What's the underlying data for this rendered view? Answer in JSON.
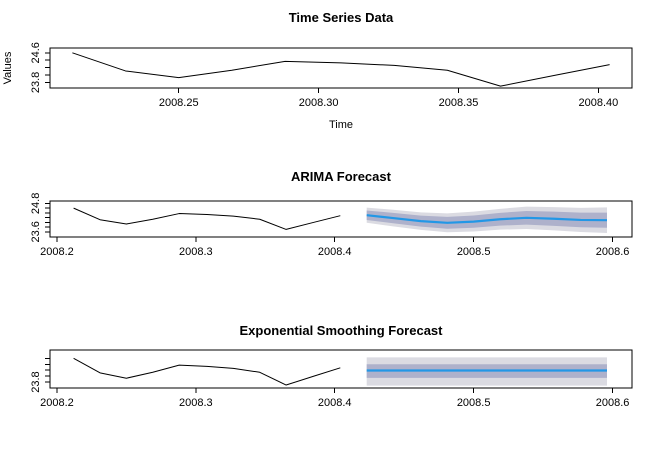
{
  "figure": {
    "background": "#ffffff",
    "frame_color": "#000000",
    "observed_line_color": "#000000",
    "forecast_line_color": "#2297E6",
    "band80_color": "#AEB1CB",
    "band95_color": "#DBDBE2"
  },
  "chart_data": [
    {
      "type": "line",
      "title": "Time Series Data",
      "xlabel": "Time",
      "ylabel": "Values",
      "xlim": [
        2008.204,
        2008.412
      ],
      "ylim": [
        23.65,
        24.73
      ],
      "xticks": {
        "values": [
          2008.25,
          2008.3,
          2008.35,
          2008.4
        ],
        "labels": [
          "2008.25",
          "2008.30",
          "2008.35",
          "2008.40"
        ]
      },
      "yticks": {
        "values": [
          23.8,
          24.0,
          24.2,
          24.4,
          24.6
        ],
        "labels": [
          "23.8",
          "",
          "",
          "",
          "24.6"
        ]
      },
      "series": [
        {
          "name": "observed",
          "x": [
            2008.212,
            2008.231,
            2008.25,
            2008.269,
            2008.288,
            2008.308,
            2008.327,
            2008.346,
            2008.365,
            2008.385,
            2008.404
          ],
          "y": [
            24.6,
            24.11,
            23.93,
            24.13,
            24.37,
            24.33,
            24.26,
            24.13,
            23.7,
            24.0,
            24.28
          ]
        }
      ]
    },
    {
      "type": "line+forecast",
      "title": "ARIMA Forecast",
      "xlabel": "",
      "ylabel": "",
      "xlim": [
        2008.195,
        2008.614
      ],
      "ylim": [
        23.38,
        24.9
      ],
      "xticks": {
        "values": [
          2008.2,
          2008.3,
          2008.4,
          2008.5,
          2008.6
        ],
        "labels": [
          "2008.2",
          "2008.3",
          "2008.4",
          "2008.5",
          "2008.6"
        ]
      },
      "yticks": {
        "values": [
          23.6,
          23.8,
          24.0,
          24.2,
          24.4,
          24.6,
          24.8
        ],
        "labels": [
          "23.6",
          "",
          "",
          "",
          "",
          "",
          "24.8"
        ]
      },
      "series": [
        {
          "name": "observed",
          "x": [
            2008.212,
            2008.231,
            2008.25,
            2008.269,
            2008.288,
            2008.308,
            2008.327,
            2008.346,
            2008.365,
            2008.385,
            2008.404
          ],
          "y": [
            24.6,
            24.11,
            23.93,
            24.13,
            24.37,
            24.33,
            24.26,
            24.13,
            23.7,
            24.0,
            24.28
          ]
        }
      ],
      "forecast": {
        "x": [
          2008.423,
          2008.442,
          2008.462,
          2008.481,
          2008.5,
          2008.519,
          2008.538,
          2008.558,
          2008.577,
          2008.596
        ],
        "mean": [
          24.3,
          24.18,
          24.05,
          23.98,
          24.03,
          24.13,
          24.19,
          24.15,
          24.1,
          24.09
        ],
        "lo80": [
          24.1,
          23.96,
          23.82,
          23.73,
          23.77,
          23.86,
          23.9,
          23.85,
          23.79,
          23.77
        ],
        "hi80": [
          24.5,
          24.4,
          24.28,
          24.23,
          24.29,
          24.4,
          24.48,
          24.45,
          24.41,
          24.41
        ],
        "lo95": [
          23.98,
          23.83,
          23.68,
          23.58,
          23.61,
          23.69,
          23.72,
          23.66,
          23.59,
          23.55
        ],
        "hi95": [
          24.62,
          24.53,
          24.42,
          24.38,
          24.45,
          24.57,
          24.66,
          24.64,
          24.61,
          24.63
        ]
      }
    },
    {
      "type": "line+forecast",
      "title": "Exponential Smoothing Forecast",
      "xlabel": "",
      "ylabel": "",
      "xlim": [
        2008.195,
        2008.614
      ],
      "ylim": [
        23.6,
        24.88
      ],
      "xticks": {
        "values": [
          2008.2,
          2008.3,
          2008.4,
          2008.5,
          2008.6
        ],
        "labels": [
          "2008.2",
          "2008.3",
          "2008.4",
          "2008.5",
          "2008.6"
        ]
      },
      "yticks": {
        "values": [
          23.8,
          24.0,
          24.2,
          24.4,
          24.6
        ],
        "labels": [
          "23.8",
          "",
          "",
          "",
          ""
        ]
      },
      "series": [
        {
          "name": "observed",
          "x": [
            2008.212,
            2008.231,
            2008.25,
            2008.269,
            2008.288,
            2008.308,
            2008.327,
            2008.346,
            2008.365,
            2008.385,
            2008.404
          ],
          "y": [
            24.6,
            24.11,
            23.93,
            24.13,
            24.37,
            24.33,
            24.26,
            24.13,
            23.7,
            24.0,
            24.28
          ]
        }
      ],
      "forecast": {
        "x": [
          2008.423,
          2008.596
        ],
        "mean": [
          24.19,
          24.19
        ],
        "lo80": [
          23.94,
          23.94
        ],
        "hi80": [
          24.4,
          24.4
        ],
        "lo95": [
          23.68,
          23.68
        ],
        "hi95": [
          24.63,
          24.63
        ]
      }
    }
  ]
}
